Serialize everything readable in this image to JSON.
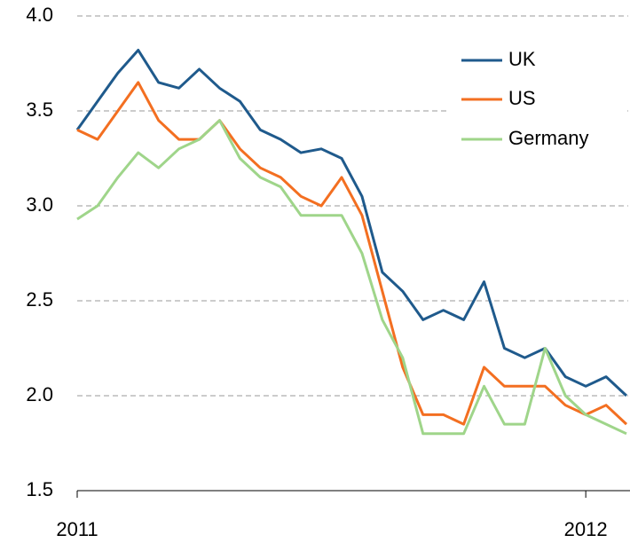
{
  "chart_data": {
    "type": "line",
    "x": [
      2011,
      2011.04,
      2011.08,
      2011.12,
      2011.16,
      2011.2,
      2011.24,
      2011.28,
      2011.32,
      2011.36,
      2011.4,
      2011.44,
      2011.48,
      2011.52,
      2011.56,
      2011.6,
      2011.64,
      2011.68,
      2011.72,
      2011.76,
      2011.8,
      2011.84,
      2011.88,
      2011.92,
      2011.96,
      2012,
      2012.04,
      2012.08
    ],
    "series": [
      {
        "name": "UK",
        "color": "#1f5a8c",
        "values": [
          3.4,
          3.55,
          3.7,
          3.82,
          3.65,
          3.62,
          3.72,
          3.62,
          3.55,
          3.4,
          3.35,
          3.28,
          3.3,
          3.25,
          3.05,
          2.65,
          2.55,
          2.4,
          2.45,
          2.4,
          2.6,
          2.25,
          2.2,
          2.25,
          2.1,
          2.05,
          2.1,
          2.0
        ]
      },
      {
        "name": "US",
        "color": "#f36f21",
        "values": [
          3.4,
          3.35,
          3.5,
          3.65,
          3.45,
          3.35,
          3.35,
          3.45,
          3.3,
          3.2,
          3.15,
          3.05,
          3.0,
          3.15,
          2.95,
          2.55,
          2.15,
          1.9,
          1.9,
          1.85,
          2.15,
          2.05,
          2.05,
          2.05,
          1.95,
          1.9,
          1.95,
          1.85
        ]
      },
      {
        "name": "Germany",
        "color": "#9fd58a",
        "values": [
          2.93,
          3.0,
          3.15,
          3.28,
          3.2,
          3.3,
          3.35,
          3.45,
          3.25,
          3.15,
          3.1,
          2.95,
          2.95,
          2.95,
          2.75,
          2.4,
          2.2,
          1.8,
          1.8,
          1.8,
          2.05,
          1.85,
          1.85,
          2.25,
          2.0,
          1.9,
          1.85,
          1.8
        ]
      }
    ],
    "xlim": [
      2011,
      2012.08
    ],
    "xticks": [
      2011,
      2012
    ],
    "ylim": [
      1.5,
      4.0
    ],
    "yticks": [
      1.5,
      {
        "value": 2,
        "label": "2.0"
      },
      2.5,
      {
        "value": 3,
        "label": "3.0"
      },
      3.5,
      {
        "value": 4,
        "label": "4.0"
      }
    ],
    "grid": true,
    "legend": "top-right"
  }
}
